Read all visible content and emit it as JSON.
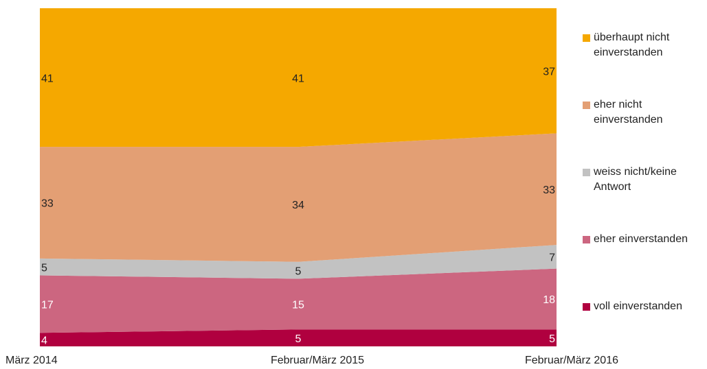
{
  "chart_data": {
    "type": "stacked-area",
    "categories": [
      "März 2014",
      "Februar/März 2015",
      "Februar/März 2016"
    ],
    "ylim": [
      0,
      100
    ],
    "series": [
      {
        "name": "voll einverstanden",
        "color": "#b0003f",
        "label_color": "#ffffff",
        "values": [
          4,
          5,
          5
        ]
      },
      {
        "name": "eher einverstanden",
        "color": "#cc6680",
        "label_color": "#ffffff",
        "values": [
          17,
          15,
          18
        ]
      },
      {
        "name": "weiss nicht/keine Antwort",
        "color": "#c2c2c2",
        "label_color": "#222222",
        "values": [
          5,
          5,
          7
        ]
      },
      {
        "name": "eher nicht einverstanden",
        "color": "#e39f74",
        "label_color": "#222222",
        "values": [
          33,
          34,
          33
        ]
      },
      {
        "name": "überhaupt nicht einverstanden",
        "color": "#f5a800",
        "label_color": "#222222",
        "values": [
          41,
          41,
          37
        ]
      }
    ]
  }
}
